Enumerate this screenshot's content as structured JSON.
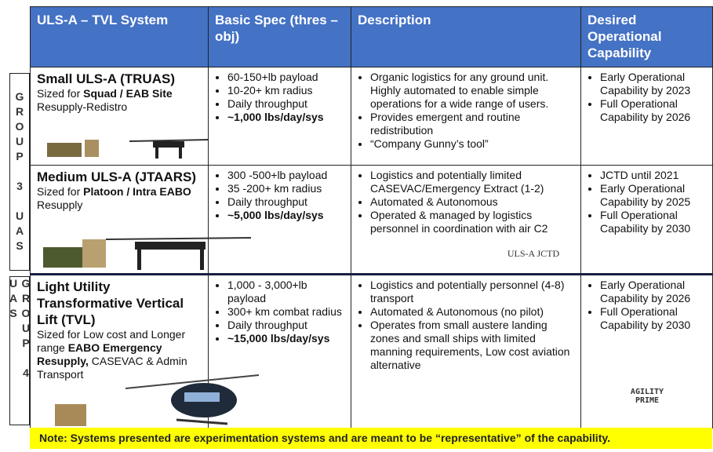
{
  "header": {
    "columns": [
      "ULS-A – TVL System",
      "Basic Spec (thres – obj)",
      "Description",
      "Desired Operational Capability"
    ]
  },
  "groups": [
    "GROUP 3 UAS",
    "GROUP 4 UAS"
  ],
  "rows": [
    {
      "title": "Small ULS-A (TRUAS)",
      "sized": [
        "Sized for ",
        "Squad / EAB Site",
        " Resupply-Redistro"
      ],
      "spec": [
        "60-150+lb payload",
        "10-20+ km radius",
        "Daily throughput",
        "~1,000 lbs/day/sys"
      ],
      "description": [
        "Organic logistics for any ground unit. Highly automated to enable simple operations for a wide range of users.",
        "Provides emergent and routine redistribution",
        "“Company Gunny’s tool”"
      ],
      "capability": [
        "Early Operational Capability by 2023",
        "Full Operational Capability by 2026"
      ]
    },
    {
      "title": "Medium ULS-A (JTAARS)",
      "sized": [
        "Sized for ",
        "Platoon / Intra EABO",
        " Resupply"
      ],
      "spec": [
        "300 -500+lb payload",
        "35 -200+ km radius",
        "Daily throughput",
        "~5,000 lbs/day/sys"
      ],
      "description": [
        "Logistics and potentially limited CASEVAC/Emergency Extract (1-2)",
        "Automated & Autonomous",
        "Operated & managed by logistics personnel in coordination with air C2"
      ],
      "capability": [
        "JCTD until 2021",
        "Early Operational Capability by 2025",
        "Full Operational Capability by 2030"
      ]
    },
    {
      "title": "Light Utility Transformative Vertical Lift (TVL)",
      "sized": [
        "Sized for Low cost and Longer range ",
        "EABO Emergency Resupply,",
        " CASEVAC & Admin Transport"
      ],
      "spec": [
        "1,000 - 3,000+lb payload",
        "300+ km combat radius",
        "Daily throughput",
        "~15,000 lbs/day/sys"
      ],
      "description": [
        "Logistics and potentially personnel (4-8) transport",
        "Automated & Autonomous (no pilot)",
        "Operates from small austere landing zones and small ships with limited manning requirements, Low cost aviation alternative"
      ],
      "capability": [
        "Early Operational Capability by 2026",
        "Full Operational Capability by 2030"
      ]
    }
  ],
  "logos": [
    "ULS-A JCTD",
    "AGILITY PRIME"
  ],
  "note": "Note: Systems presented are experimentation systems and are meant to be “representative” of the capability."
}
